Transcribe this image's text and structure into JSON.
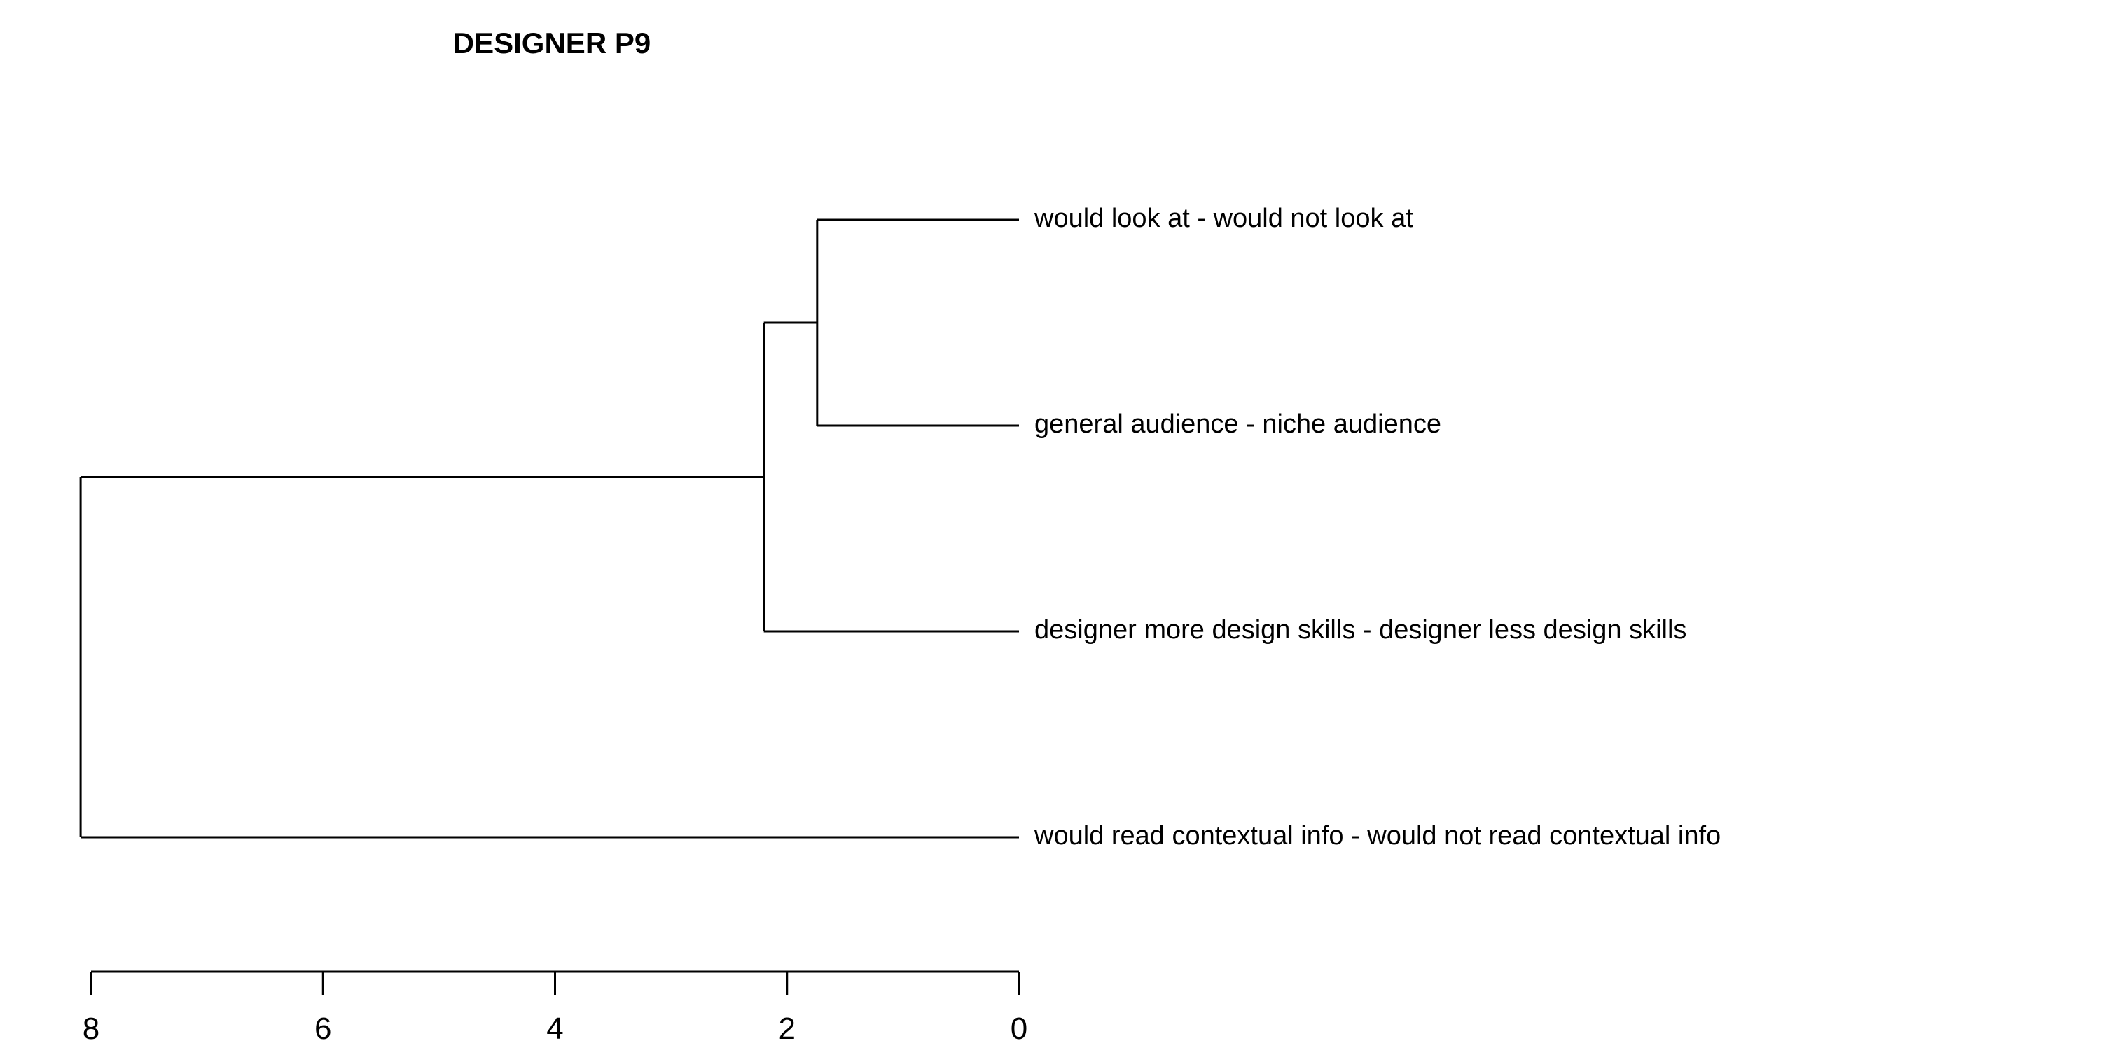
{
  "chart_data": {
    "type": "dendrogram",
    "title": "DESIGNER P9",
    "xlabel": "",
    "ylabel": "",
    "orientation": "horizontal",
    "xlim": [
      8,
      0
    ],
    "ticks": [
      8,
      6,
      4,
      2,
      0
    ],
    "tick_labels": [
      "8",
      "6",
      "4",
      "2",
      "0"
    ],
    "leaves": [
      "would look at - would not look at",
      "general audience - niche audience",
      "designer more design skills - designer less design skills",
      "would read contextual info - would not read contextual info"
    ],
    "merges": [
      {
        "left": 0,
        "right": 1,
        "height": 1.74
      },
      {
        "left": 4,
        "right": 2,
        "height": 2.2
      },
      {
        "left": 5,
        "right": 3,
        "height": 8.09
      }
    ],
    "colors": {
      "line": "#000000",
      "background": "#ffffff"
    }
  }
}
